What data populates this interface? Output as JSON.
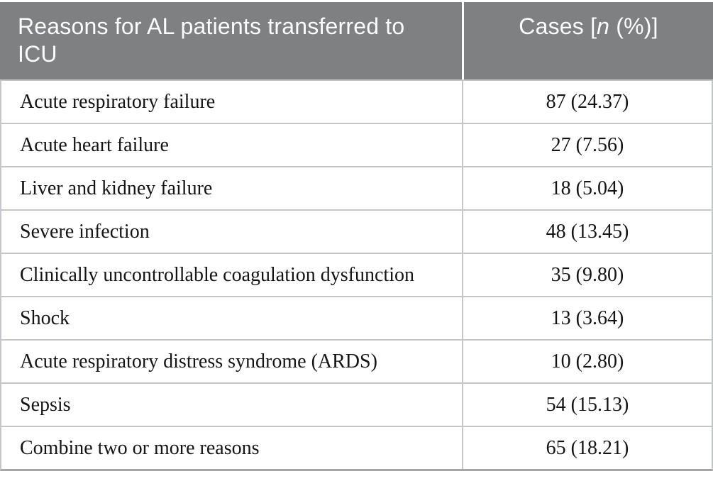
{
  "table": {
    "header": {
      "reason_label": "Reasons for AL patients transferred to ICU",
      "cases_prefix": "Cases [",
      "cases_n": "n",
      "cases_suffix": " (%)]"
    },
    "rows": [
      {
        "reason": "Acute respiratory failure",
        "cases": "87 (24.37)"
      },
      {
        "reason": "Acute heart failure",
        "cases": "27 (7.56)"
      },
      {
        "reason": "Liver and kidney failure",
        "cases": "18 (5.04)"
      },
      {
        "reason": "Severe infection",
        "cases": "48 (13.45)"
      },
      {
        "reason": "Clinically uncontrollable coagulation dysfunction",
        "cases": "35 (9.80)"
      },
      {
        "reason": "Shock",
        "cases": "13 (3.64)"
      },
      {
        "reason": "Acute respiratory distress syndrome (ARDS)",
        "cases": "10 (2.80)"
      },
      {
        "reason": "Sepsis",
        "cases": "54 (15.13)"
      },
      {
        "reason": "Combine two or more reasons",
        "cases": "65 (18.21)"
      }
    ]
  },
  "colors": {
    "header_bg": "#7e8082",
    "header_text": "#fdfdfd",
    "row_line": "#c5c6c9",
    "bottom_line": "#a5a6a9",
    "body_text": "#141414"
  }
}
